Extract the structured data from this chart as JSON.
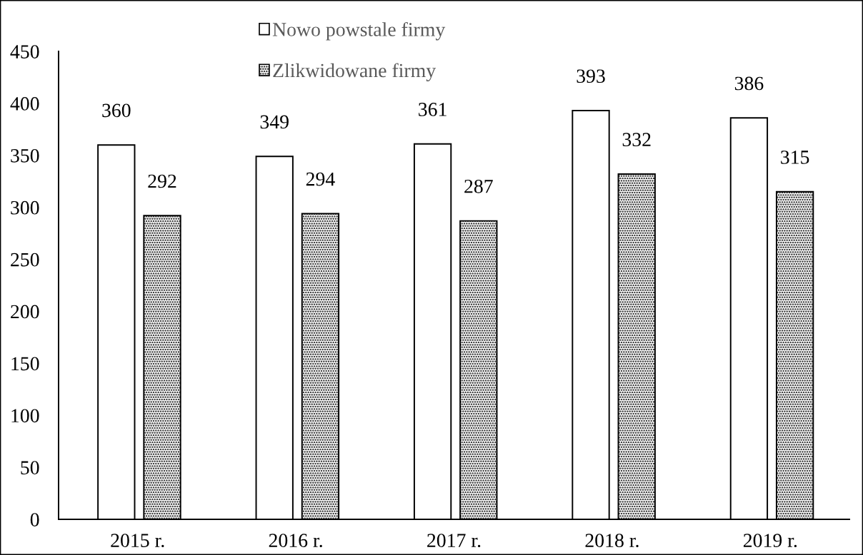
{
  "chart_data": {
    "type": "bar",
    "categories": [
      "2015 r.",
      "2016 r.",
      "2017 r.",
      "2018 r.",
      "2019 r."
    ],
    "series": [
      {
        "name": "Nowo powstale firmy",
        "color": "#ffffff",
        "values": [
          360,
          349,
          361,
          393,
          386
        ]
      },
      {
        "name": "Zlikwidowane firmy",
        "color": "#000000",
        "values": [
          292,
          294,
          287,
          332,
          315
        ]
      }
    ],
    "ylim": [
      0,
      450
    ],
    "yticks": [
      0,
      50,
      100,
      150,
      200,
      250,
      300,
      350,
      400,
      450
    ],
    "legend": "top",
    "data_labels": true
  }
}
